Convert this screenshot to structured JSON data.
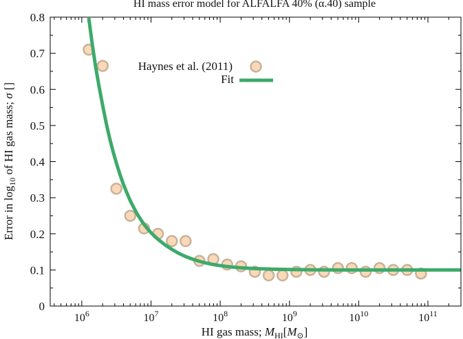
{
  "chart_data": {
    "type": "scatter",
    "title": "HI mass error model for ALFALFA 40% (α.40) sample",
    "xlabel_text": "HI gas mass; ",
    "xlabel_math": "M",
    "xlabel_sub": "HI",
    "xlabel_bracket_open": "[",
    "xlabel_unit": "M",
    "xlabel_unit_sub": "⊙",
    "xlabel_bracket_close": "]",
    "ylabel_text_a": "Error in log",
    "ylabel_sub": "10",
    "ylabel_text_b": " of HI gas mass; ",
    "ylabel_sigma": "σ",
    "ylabel_unit": " []",
    "x_scale": "log",
    "xlim": [
      350000,
      300000000000
    ],
    "ylim": [
      0,
      0.8
    ],
    "grid": false,
    "legend_position": "top-center",
    "x_tick_labels": [
      {
        "value": 1000000,
        "base": "10",
        "exp": "6"
      },
      {
        "value": 10000000,
        "base": "10",
        "exp": "7"
      },
      {
        "value": 100000000,
        "base": "10",
        "exp": "8"
      },
      {
        "value": 1000000000,
        "base": "10",
        "exp": "9"
      },
      {
        "value": 10000000000,
        "base": "10",
        "exp": "10"
      },
      {
        "value": 100000000000,
        "base": "10",
        "exp": "11"
      }
    ],
    "y_ticks": [
      0,
      0.1,
      0.2,
      0.3,
      0.4,
      0.5,
      0.6,
      0.7,
      0.8
    ],
    "y_tick_labels": [
      "0",
      "0.1",
      "0.2",
      "0.3",
      "0.4",
      "0.5",
      "0.6",
      "0.7",
      "0.8"
    ],
    "series": [
      {
        "name": "Haynes et al. (2011)",
        "kind": "points",
        "fill_color": "#fad9b8",
        "edge_color": "#c8b29a",
        "x": [
          1260000,
          2000000,
          3160000,
          5010000,
          7940000,
          12600000,
          20000000,
          31600000,
          50100000,
          79400000,
          126000000,
          200000000,
          316000000,
          501000000,
          794000000,
          1260000000,
          2000000000,
          3160000000,
          5010000000,
          7940000000,
          12600000000,
          20000000000,
          31600000000,
          50100000000,
          79400000000
        ],
        "y": [
          0.71,
          0.665,
          0.325,
          0.25,
          0.215,
          0.2,
          0.18,
          0.18,
          0.125,
          0.13,
          0.115,
          0.11,
          0.095,
          0.085,
          0.085,
          0.095,
          0.1,
          0.095,
          0.105,
          0.105,
          0.095,
          0.105,
          0.1,
          0.1,
          0.09
        ]
      },
      {
        "name": "Fit",
        "kind": "line",
        "color": "#3daa6a",
        "x": [
          1260000,
          1410000,
          1580000,
          1780000,
          2000000,
          2240000,
          2510000,
          2820000,
          3160000,
          3550000,
          3980000,
          4470000,
          5010000,
          5620000,
          6310000,
          7080000,
          7940000,
          8910000,
          10000000,
          12600000,
          15800000,
          20000000,
          25100000,
          31600000,
          39800000,
          50100000,
          63100000,
          79400000,
          100000000,
          126000000,
          158000000,
          200000000,
          251000000,
          316000000,
          398000000,
          501000000,
          631000000,
          794000000,
          1000000000,
          2000000000,
          5000000000,
          10000000000,
          30000000000,
          100000000000,
          300000000000
        ],
        "y": [
          0.798,
          0.728,
          0.664,
          0.607,
          0.556,
          0.509,
          0.467,
          0.429,
          0.396,
          0.365,
          0.338,
          0.314,
          0.292,
          0.273,
          0.255,
          0.24,
          0.226,
          0.214,
          0.203,
          0.185,
          0.17,
          0.157,
          0.146,
          0.137,
          0.13,
          0.124,
          0.119,
          0.115,
          0.112,
          0.1095,
          0.1075,
          0.106,
          0.1048,
          0.1039,
          0.1031,
          0.1025,
          0.102,
          0.1016,
          0.1013,
          0.1005,
          0.1001,
          0.1,
          0.1,
          0.1,
          0.1
        ]
      }
    ]
  }
}
